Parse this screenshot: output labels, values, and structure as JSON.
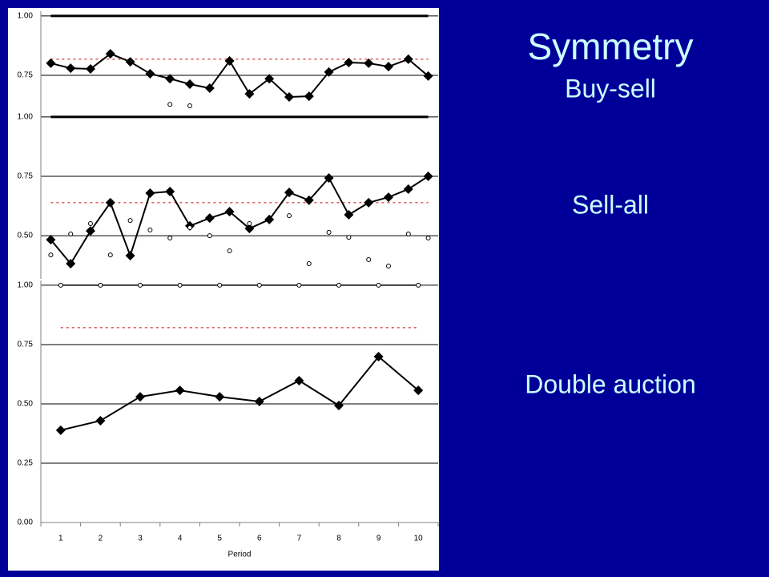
{
  "slide": {
    "title": "Symmetry",
    "subtitle": "Buy-sell",
    "labels": [
      "Sell-all",
      "Double auction"
    ]
  },
  "chart_data": [
    {
      "type": "line",
      "categories": [
        null,
        null,
        null,
        null,
        null,
        null,
        null,
        null,
        null,
        null,
        null,
        null,
        null,
        null,
        null,
        null,
        null,
        null,
        null,
        null
      ],
      "ylim": [
        0.595,
        1.02
      ],
      "yticks": [
        {
          "value": 0.75,
          "label": "0.75"
        },
        {
          "value": 1,
          "label": "1.00"
        }
      ],
      "reference_line": {
        "value": 1,
        "color": "#000000"
      },
      "mean_line": {
        "value": 0.818,
        "color": "#cc0000"
      },
      "series": [
        {
          "color": "#000000",
          "marker": "diamond",
          "line": true,
          "values": [
            0.801,
            0.78,
            0.777,
            0.841,
            0.807,
            0.757,
            0.736,
            0.713,
            0.696,
            0.811,
            0.672,
            0.736,
            0.659,
            0.662,
            0.764,
            0.804,
            0.801,
            0.787,
            0.818,
            0.747
          ]
        },
        {
          "color": "#000000",
          "marker": "circle",
          "line": false,
          "values": [
            null,
            null,
            null,
            null,
            null,
            null,
            0.628,
            0.622,
            null,
            null,
            null,
            null,
            null,
            null,
            null,
            null,
            null,
            null,
            null,
            null
          ]
        }
      ]
    },
    {
      "type": "line",
      "categories": [
        null,
        null,
        null,
        null,
        null,
        null,
        null,
        null,
        null,
        null,
        null,
        null,
        null,
        null,
        null,
        null,
        null,
        null,
        null,
        null
      ],
      "ylim": [
        0.318,
        1.02
      ],
      "yticks": [
        {
          "value": 0.5,
          "label": "0.50"
        },
        {
          "value": 0.75,
          "label": "0.75"
        },
        {
          "value": 1,
          "label": "1.00"
        }
      ],
      "reference_line": {
        "value": 1,
        "color": "#000000"
      },
      "mean_line": {
        "value": 0.639,
        "color": "#cc0000"
      },
      "series": [
        {
          "color": "#000000",
          "marker": "diamond",
          "line": true,
          "values": [
            0.483,
            0.382,
            0.52,
            0.639,
            0.416,
            0.679,
            0.686,
            0.541,
            0.574,
            0.601,
            0.53,
            0.568,
            0.682,
            0.649,
            0.743,
            0.588,
            0.639,
            0.662,
            0.696,
            0.75
          ]
        },
        {
          "color": "#000000",
          "marker": "circle",
          "line": false,
          "values": [
            0.419,
            0.507,
            0.551,
            0.419,
            0.564,
            0.524,
            0.49,
            0.534,
            0.5,
            0.436,
            0.551,
            null,
            0.584,
            0.382,
            0.514,
            0.493,
            0.399,
            0.372,
            0.507,
            0.49
          ]
        }
      ]
    },
    {
      "type": "line",
      "categories": [
        "1",
        "2",
        "3",
        "4",
        "5",
        "6",
        "7",
        "8",
        "9",
        "10"
      ],
      "xlabel": "Period",
      "ylim": [
        0,
        1.02
      ],
      "yticks": [
        {
          "value": 0,
          "label": "0.00"
        },
        {
          "value": 0.25,
          "label": "0.25"
        },
        {
          "value": 0.5,
          "label": "0.50"
        },
        {
          "value": 0.75,
          "label": "0.75"
        },
        {
          "value": 1,
          "label": "1.00"
        }
      ],
      "mean_line": {
        "value": 0.821,
        "color": "#cc0000"
      },
      "series": [
        {
          "color": "#000000",
          "marker": "diamond",
          "line": true,
          "values": [
            0.389,
            0.429,
            0.53,
            0.557,
            0.53,
            0.51,
            0.598,
            0.493,
            0.699,
            0.557
          ]
        },
        {
          "color": "#000000",
          "marker": "circle",
          "line": true,
          "values": [
            1,
            1,
            1,
            1,
            1,
            1,
            1,
            1,
            1,
            1
          ]
        }
      ]
    }
  ]
}
